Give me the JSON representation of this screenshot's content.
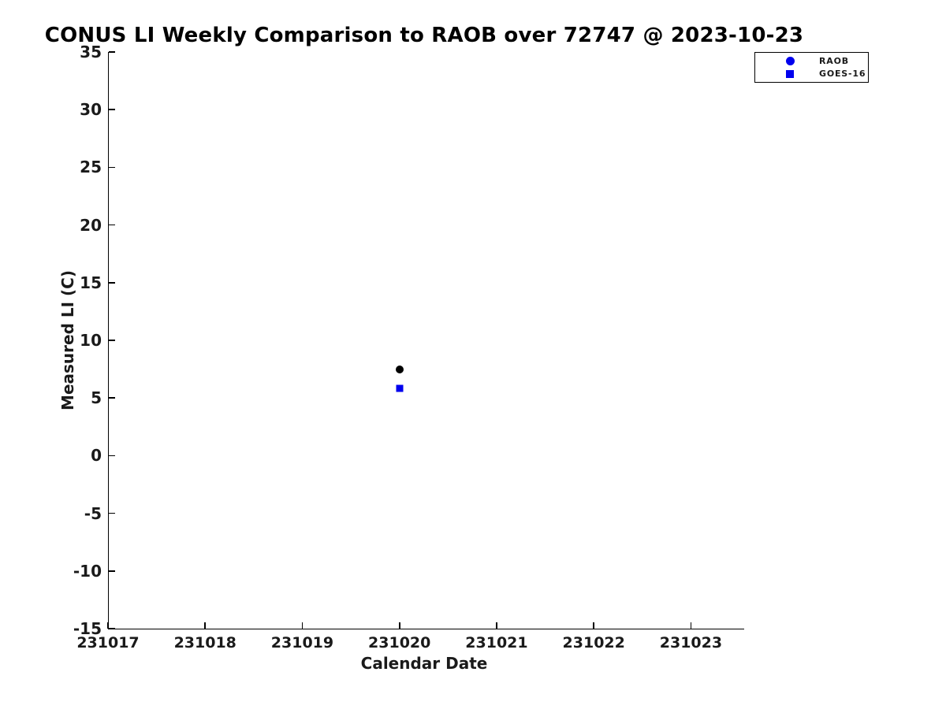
{
  "chart_data": {
    "type": "scatter",
    "title": "CONUS LI Weekly Comparison to RAOB over 72747 @ 2023-10-23",
    "xlabel": "Calendar Date",
    "ylabel": "Measured LI (C)",
    "xlim": [
      231017,
      231023.54
    ],
    "ylim": [
      -15,
      35
    ],
    "xticks": [
      231017,
      231018,
      231019,
      231020,
      231021,
      231022,
      231023
    ],
    "yticks": [
      35,
      30,
      25,
      20,
      15,
      10,
      5,
      0,
      -5,
      -10,
      -15
    ],
    "grid": false,
    "background_color": "#ffffff",
    "axis_color": "#000000",
    "accent_blue": "#0000ee",
    "legend": {
      "position": "top-right-outside",
      "entries": [
        {
          "label": "RAOB",
          "marker": "circle",
          "color": "#0000ee"
        },
        {
          "label": "GOES-16",
          "marker": "square",
          "color": "#0000ee"
        }
      ]
    },
    "series": [
      {
        "name": "RAOB",
        "marker": "circle",
        "plotted_color": "#000000",
        "marker_size": 10,
        "points": [
          {
            "x": 231020,
            "y": 7.5
          }
        ]
      },
      {
        "name": "GOES-16",
        "marker": "square",
        "plotted_color": "#0000ee",
        "marker_size": 9,
        "points": [
          {
            "x": 231020,
            "y": 5.8
          }
        ]
      }
    ]
  }
}
